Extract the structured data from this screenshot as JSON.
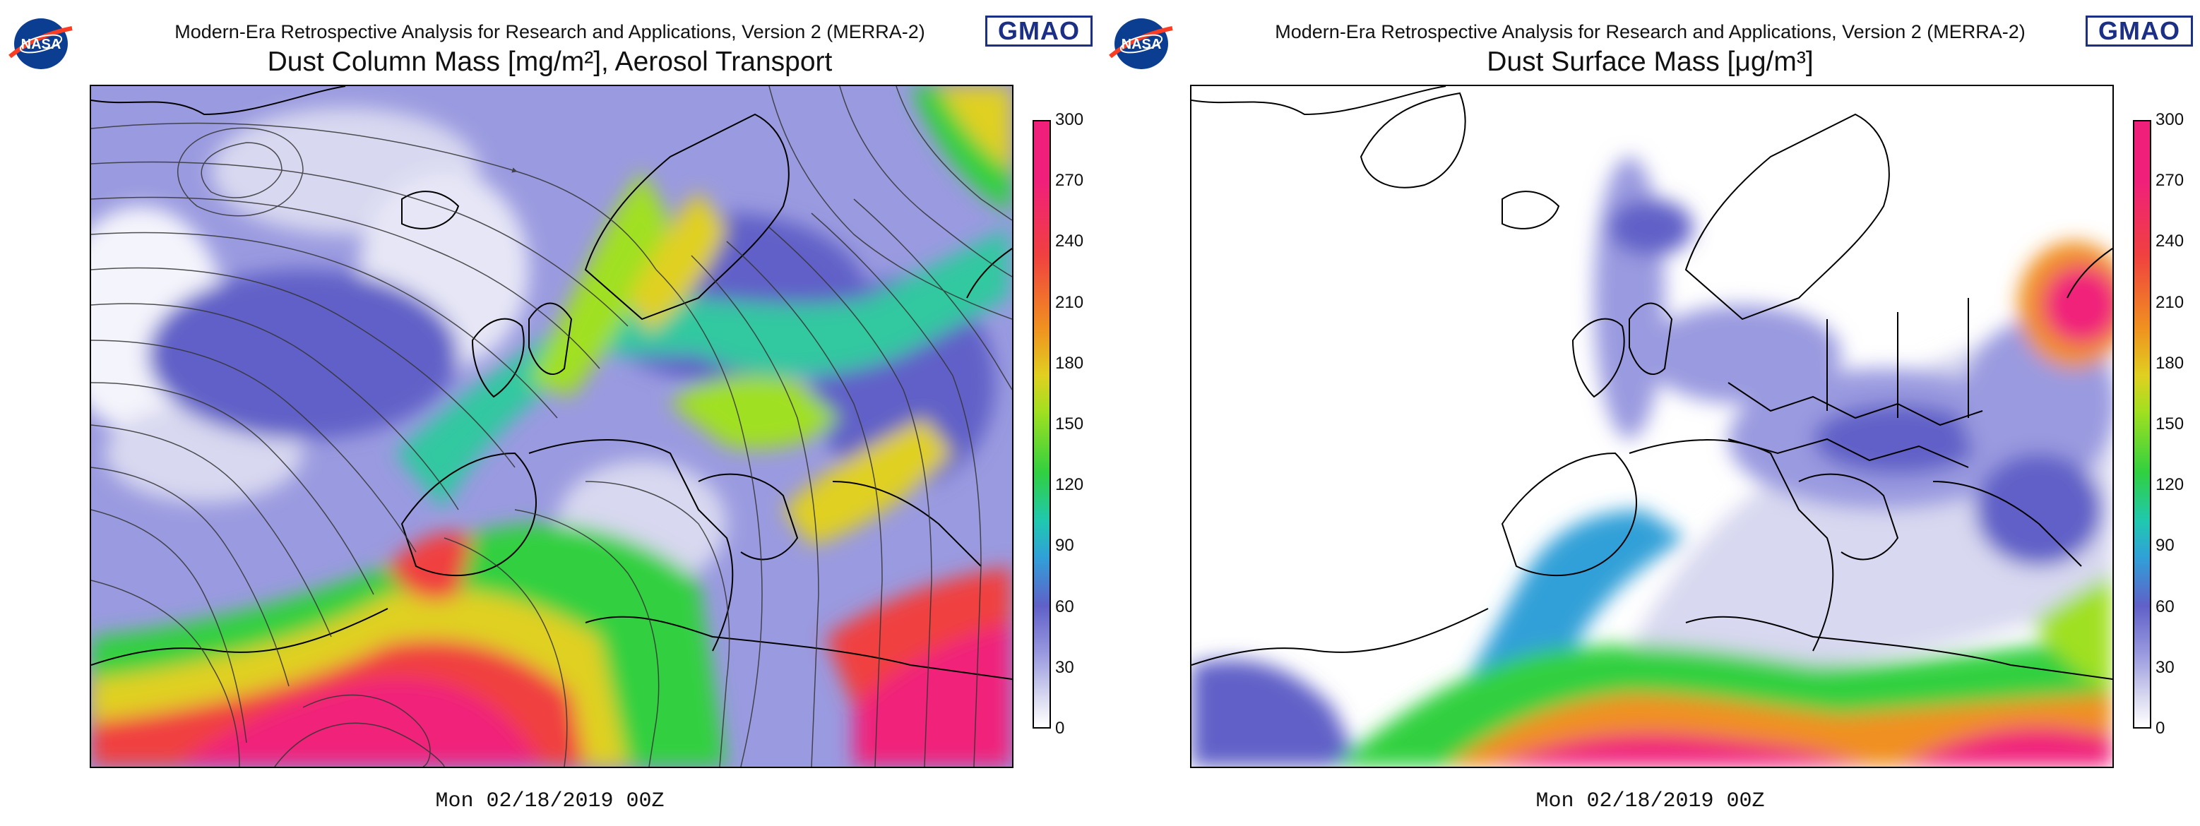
{
  "header": {
    "suptitle": "Modern-Era Retrospective Analysis for Research and Applications, Version 2 (MERRA-2)",
    "logo_left_text": "NASA",
    "logo_right_text": "GMAO",
    "logo_left_icon": "nasa-meatball-icon",
    "logo_right_icon": "gmao-wordmark"
  },
  "panels": [
    {
      "id": "left",
      "title": "Dust Column Mass [mg/m²], Aerosol Transport",
      "timestamp": "Mon 02/18/2019 00Z",
      "colorbar": {
        "min": 0,
        "max": 300,
        "ticks": [
          "300",
          "270",
          "240",
          "210",
          "180",
          "150",
          "120",
          "90",
          "60",
          "30",
          "0"
        ]
      },
      "has_streamlines": true
    },
    {
      "id": "right",
      "title": "Dust Surface Mass [μg/m³]",
      "timestamp": "Mon 02/18/2019 00Z",
      "colorbar": {
        "min": 0,
        "max": 300,
        "ticks": [
          "300",
          "270",
          "240",
          "210",
          "180",
          "150",
          "120",
          "90",
          "60",
          "30",
          "0"
        ]
      },
      "has_streamlines": false
    }
  ],
  "colors": {
    "colormap": [
      "#ffffff",
      "#d8d8f0",
      "#9a9ae0",
      "#6060c8",
      "#30a0d8",
      "#20c8b0",
      "#30d040",
      "#a0e020",
      "#e0d020",
      "#f09020",
      "#f04040",
      "#f0207a"
    ],
    "nasa_blue": "#0b3d91",
    "nasa_red": "#fc3d21",
    "gmao_blue": "#1b2f86"
  }
}
